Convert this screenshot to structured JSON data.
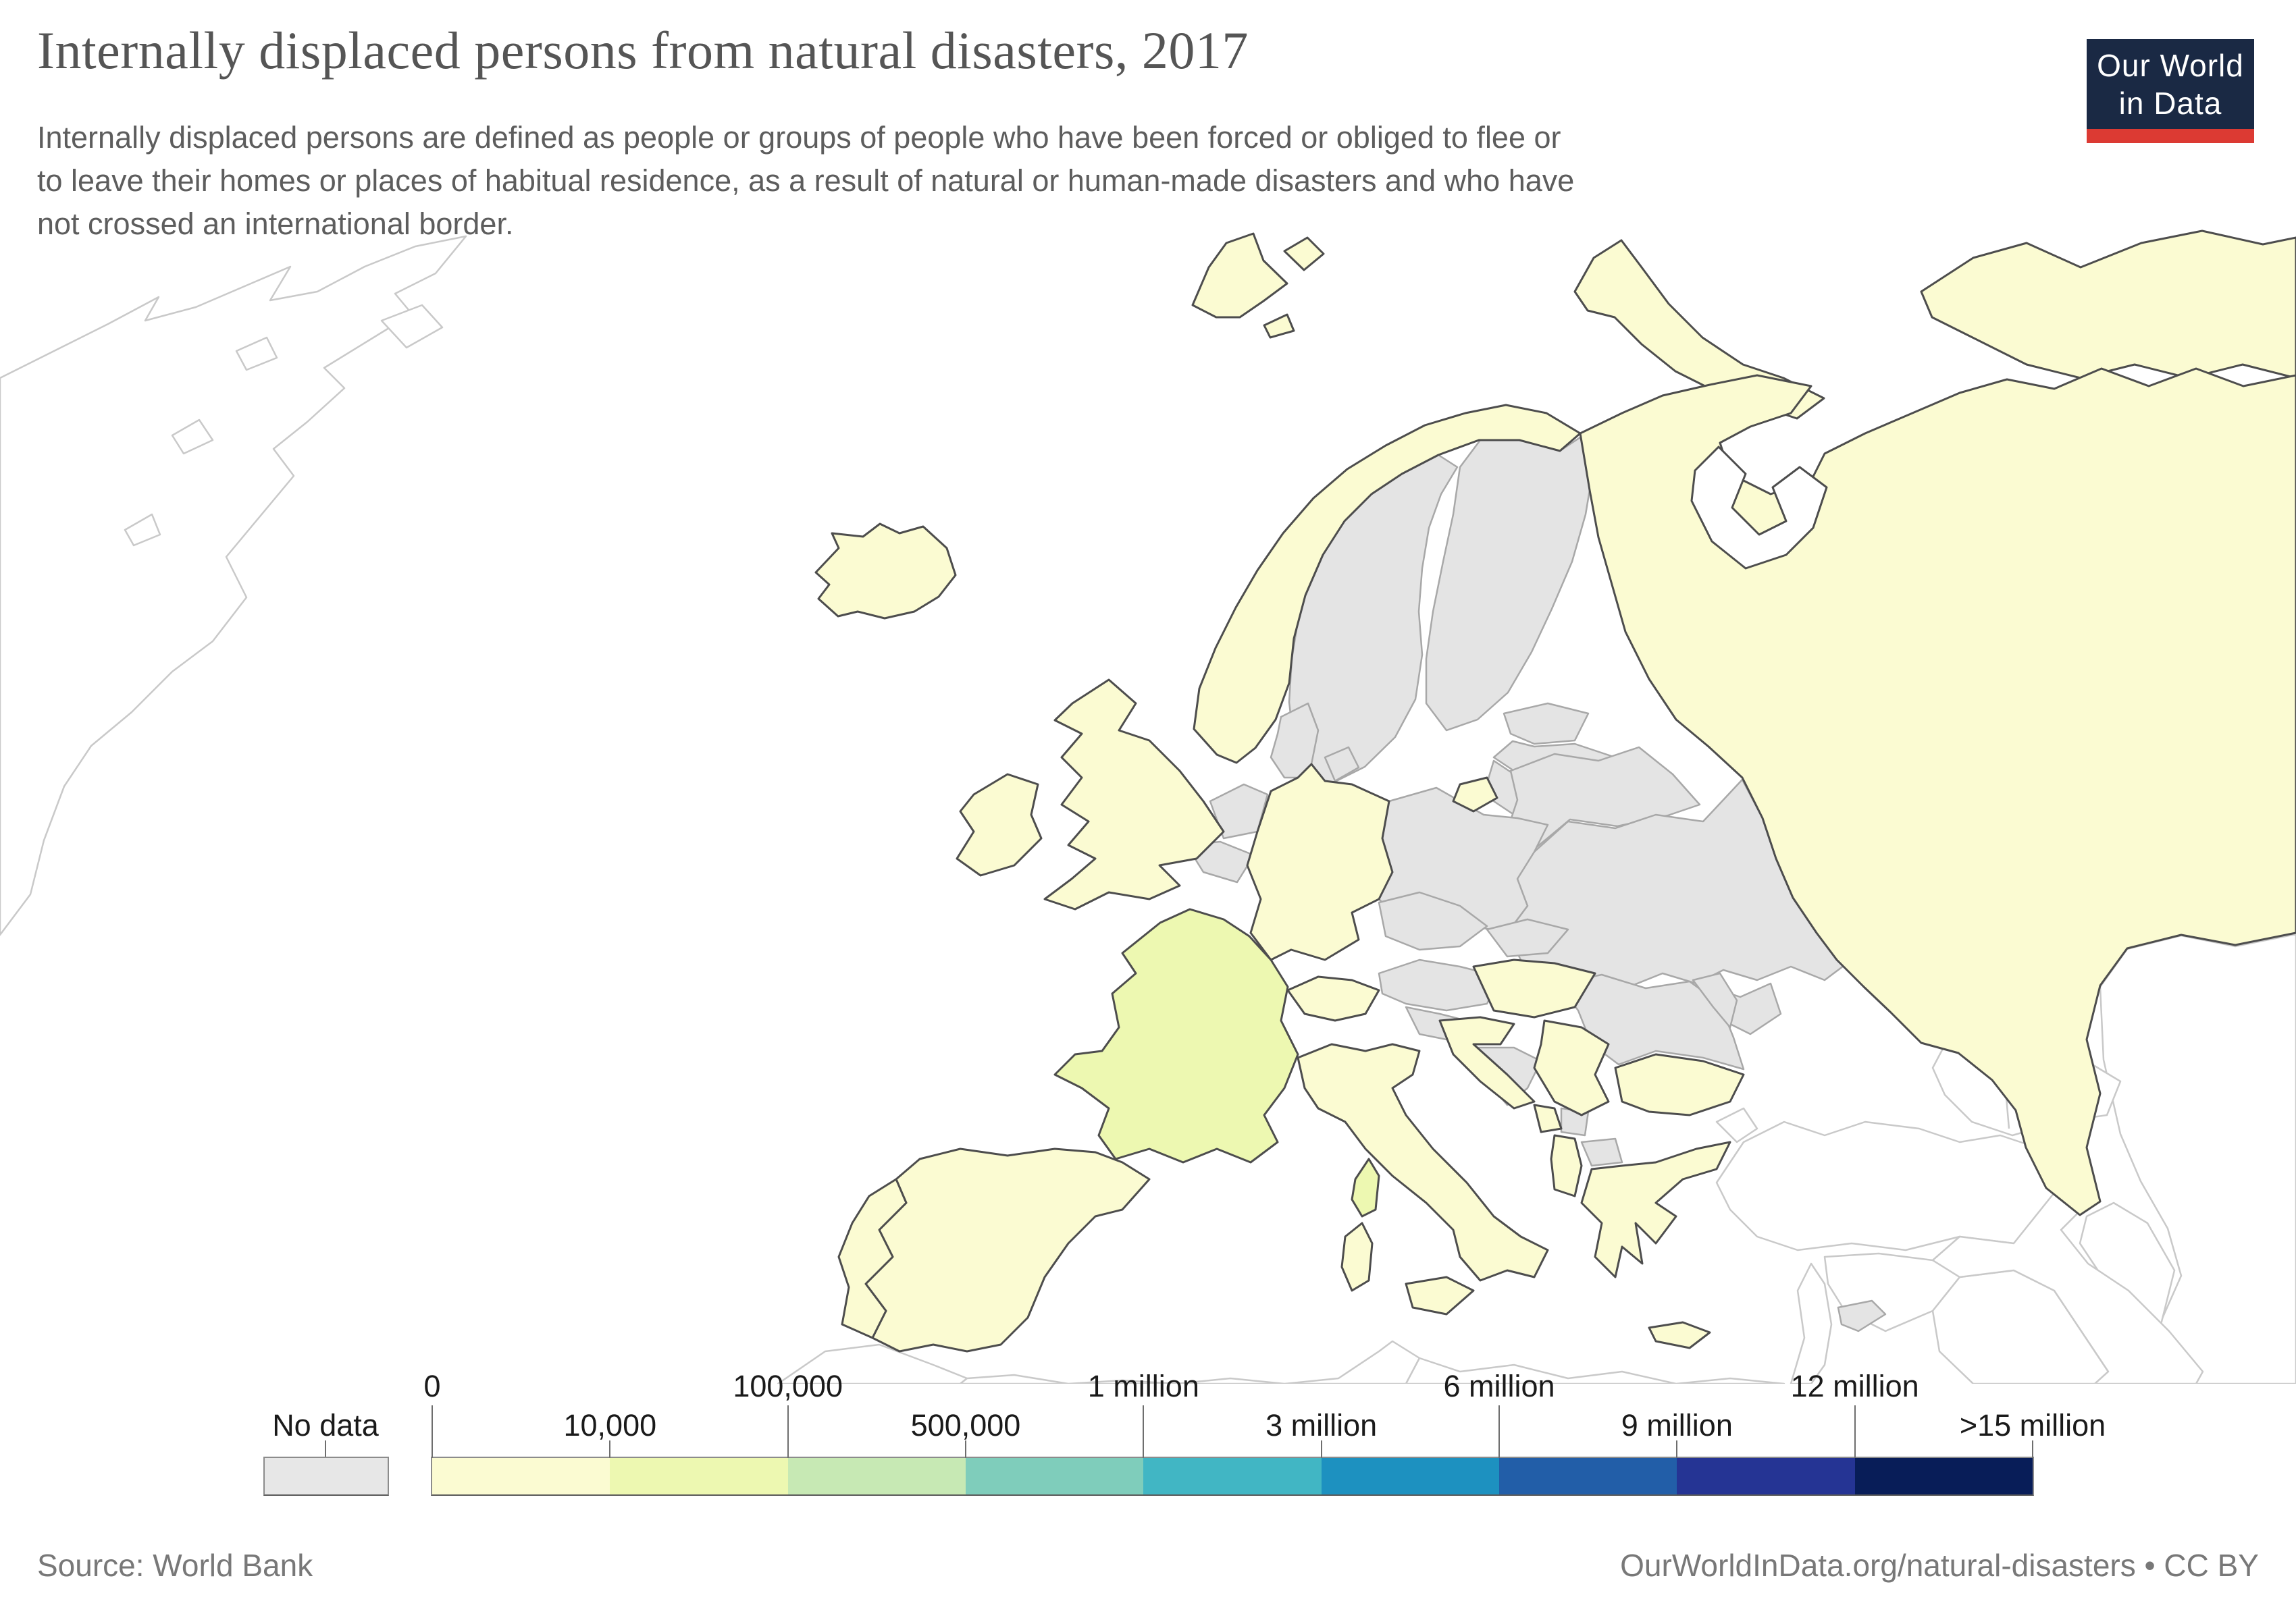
{
  "title": "Internally displaced persons from natural disasters, 2017",
  "subtitle": {
    "lines": [
      "Internally displaced persons are defined as people or groups of people who have been forced or obliged to flee or",
      "to leave their homes or places of habitual residence, as a result of natural or human-made disasters and who have",
      "not crossed an international border."
    ]
  },
  "logo": {
    "line1": "Our World",
    "line2": "in Data",
    "bg_color": "#1a2944",
    "stripe_color": "#dc3a33"
  },
  "legend": {
    "no_data_label": "No data",
    "no_data_color": "#e7e7e7",
    "bin_boundary_labels": [
      {
        "label": "0",
        "row": "top"
      },
      {
        "label": "10,000",
        "row": "bottom"
      },
      {
        "label": "100,000",
        "row": "top"
      },
      {
        "label": "500,000",
        "row": "bottom"
      },
      {
        "label": "1 million",
        "row": "top"
      },
      {
        "label": "3 million",
        "row": "bottom"
      },
      {
        "label": "6 million",
        "row": "top"
      },
      {
        "label": "9 million",
        "row": "bottom"
      },
      {
        "label": "12 million",
        "row": "top"
      },
      {
        "label": ">15 million",
        "row": "bottom"
      }
    ],
    "colors": [
      "#fbfbd2",
      "#edf8b1",
      "#c7e9b4",
      "#7fcdbb",
      "#41b6c4",
      "#1d91c0",
      "#225ea8",
      "#253494",
      "#081d58"
    ]
  },
  "map": {
    "bin_colors": {
      "0-10k": "#fbfbd2",
      "10k-100k": "#edf8b1",
      "no-data": "#e4e4e4",
      "outside": "#ffffff"
    },
    "countries": [
      {
        "key": "iceland",
        "name": "Iceland",
        "bin": "0-10k"
      },
      {
        "key": "norway",
        "name": "Norway",
        "bin": "0-10k"
      },
      {
        "key": "svalbard-a",
        "name": "Svalbard",
        "bin": "0-10k"
      },
      {
        "key": "svalbard-b",
        "name": "Svalbard",
        "bin": "0-10k"
      },
      {
        "key": "svalbard-c",
        "name": "Svalbard",
        "bin": "0-10k"
      },
      {
        "key": "russia",
        "name": "Russia",
        "bin": "0-10k"
      },
      {
        "key": "novaya-zemlya",
        "name": "Russia (Novaya Zemlya)",
        "bin": "0-10k"
      },
      {
        "key": "arctic-coast",
        "name": "Russia (Arctic coast)",
        "bin": "0-10k"
      },
      {
        "key": "kaliningrad",
        "name": "Russia (Kaliningrad)",
        "bin": "0-10k"
      },
      {
        "key": "united-kingdom",
        "name": "United Kingdom",
        "bin": "0-10k"
      },
      {
        "key": "ireland",
        "name": "Ireland",
        "bin": "0-10k"
      },
      {
        "key": "germany",
        "name": "Germany",
        "bin": "0-10k"
      },
      {
        "key": "switzerland",
        "name": "Switzerland",
        "bin": "0-10k"
      },
      {
        "key": "spain",
        "name": "Spain",
        "bin": "0-10k"
      },
      {
        "key": "portugal",
        "name": "Portugal",
        "bin": "0-10k"
      },
      {
        "key": "italy",
        "name": "Italy",
        "bin": "0-10k"
      },
      {
        "key": "sicily",
        "name": "Italy (Sicily)",
        "bin": "0-10k"
      },
      {
        "key": "sardinia",
        "name": "Italy (Sardinia)",
        "bin": "0-10k"
      },
      {
        "key": "hungary",
        "name": "Hungary",
        "bin": "0-10k"
      },
      {
        "key": "croatia",
        "name": "Croatia",
        "bin": "0-10k"
      },
      {
        "key": "serbia",
        "name": "Serbia",
        "bin": "0-10k"
      },
      {
        "key": "montenegro",
        "name": "Montenegro",
        "bin": "0-10k"
      },
      {
        "key": "albania",
        "name": "Albania",
        "bin": "0-10k"
      },
      {
        "key": "bulgaria",
        "name": "Bulgaria",
        "bin": "0-10k"
      },
      {
        "key": "greece",
        "name": "Greece",
        "bin": "0-10k"
      },
      {
        "key": "crete",
        "name": "Greece (Crete)",
        "bin": "0-10k"
      },
      {
        "key": "france",
        "name": "France",
        "bin": "10k-100k"
      },
      {
        "key": "corsica",
        "name": "France (Corsica)",
        "bin": "10k-100k"
      },
      {
        "key": "sweden",
        "name": "Sweden",
        "bin": "no-data"
      },
      {
        "key": "finland",
        "name": "Finland",
        "bin": "no-data"
      },
      {
        "key": "denmark",
        "name": "Denmark",
        "bin": "no-data"
      },
      {
        "key": "denmark-island",
        "name": "Denmark (Zealand)",
        "bin": "no-data"
      },
      {
        "key": "estonia",
        "name": "Estonia",
        "bin": "no-data"
      },
      {
        "key": "latvia",
        "name": "Latvia",
        "bin": "no-data"
      },
      {
        "key": "lithuania",
        "name": "Lithuania",
        "bin": "no-data"
      },
      {
        "key": "belarus",
        "name": "Belarus",
        "bin": "no-data"
      },
      {
        "key": "ukraine",
        "name": "Ukraine",
        "bin": "no-data"
      },
      {
        "key": "crimea",
        "name": "Crimea",
        "bin": "no-data"
      },
      {
        "key": "poland",
        "name": "Poland",
        "bin": "no-data"
      },
      {
        "key": "netherlands",
        "name": "Netherlands",
        "bin": "no-data"
      },
      {
        "key": "belgium",
        "name": "Belgium",
        "bin": "no-data"
      },
      {
        "key": "luxembourg",
        "name": "Luxembourg",
        "bin": "no-data"
      },
      {
        "key": "czechia",
        "name": "Czechia",
        "bin": "no-data"
      },
      {
        "key": "slovakia",
        "name": "Slovakia",
        "bin": "no-data"
      },
      {
        "key": "austria",
        "name": "Austria",
        "bin": "no-data"
      },
      {
        "key": "slovenia",
        "name": "Slovenia",
        "bin": "no-data"
      },
      {
        "key": "bosnia",
        "name": "Bosnia and Herzegovina",
        "bin": "no-data"
      },
      {
        "key": "kosovo",
        "name": "Kosovo",
        "bin": "no-data"
      },
      {
        "key": "macedonia",
        "name": "North Macedonia",
        "bin": "no-data"
      },
      {
        "key": "romania",
        "name": "Romania",
        "bin": "no-data"
      },
      {
        "key": "moldova",
        "name": "Moldova",
        "bin": "no-data"
      },
      {
        "key": "cyprus",
        "name": "Cyprus",
        "bin": "no-data"
      },
      {
        "key": "greenland",
        "name": "Greenland",
        "bin": "outside"
      },
      {
        "key": "turkey",
        "name": "Turkey",
        "bin": "outside"
      },
      {
        "key": "turkey-thrace",
        "name": "Turkey (Thrace)",
        "bin": "outside"
      },
      {
        "key": "kazakhstan",
        "name": "Kazakhstan",
        "bin": "outside"
      },
      {
        "key": "caucasus",
        "name": "Georgia / Armenia / Azerbaijan",
        "bin": "outside"
      },
      {
        "key": "syria",
        "name": "Syria",
        "bin": "outside"
      },
      {
        "key": "levant",
        "name": "Lebanon / Israel / Jordan",
        "bin": "outside"
      },
      {
        "key": "iraq",
        "name": "Iraq",
        "bin": "outside"
      },
      {
        "key": "iran",
        "name": "Iran",
        "bin": "outside"
      },
      {
        "key": "morocco",
        "name": "Morocco",
        "bin": "outside"
      },
      {
        "key": "algeria-tunisia",
        "name": "Algeria / Tunisia",
        "bin": "outside"
      },
      {
        "key": "libya-egypt",
        "name": "Libya / Egypt",
        "bin": "outside"
      }
    ]
  },
  "footer": {
    "source": "Source: World Bank",
    "link": "OurWorldInData.org/natural-disasters • CC BY"
  }
}
